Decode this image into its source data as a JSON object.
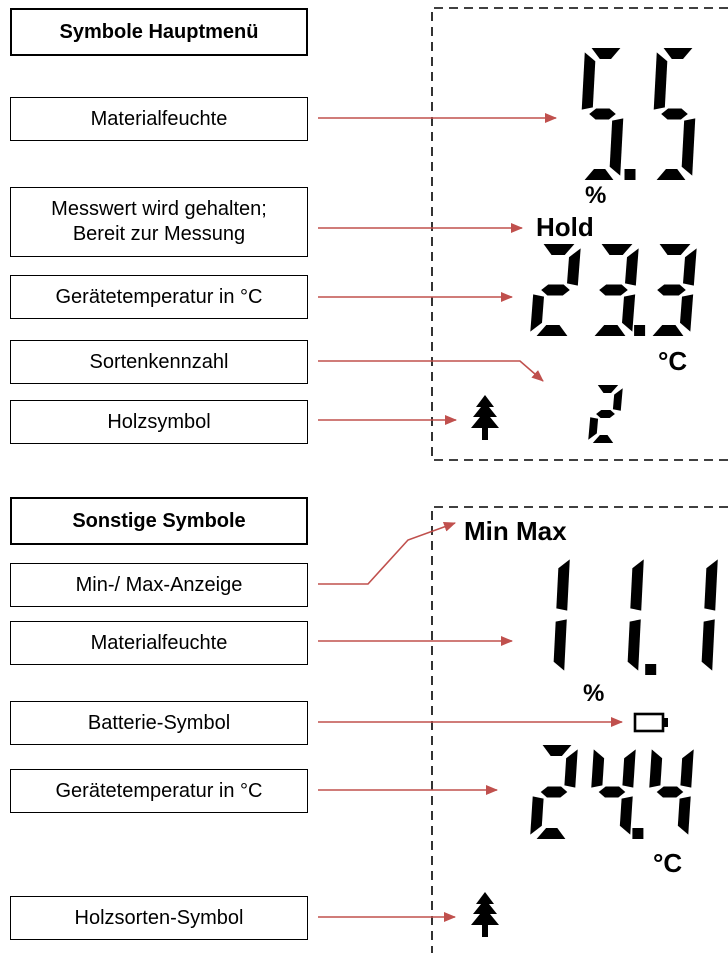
{
  "section1": {
    "title": "Symbole Hauptmenü",
    "items": [
      "Materialfeuchte",
      "Messwert wird gehalten;\nBereit zur Messung",
      "Gerätetemperatur in °C",
      "Sortenkennzahl",
      "Holzsymbol"
    ],
    "display": {
      "moisture": "5.5",
      "moisture_unit": "%",
      "hold": "Hold",
      "temperature": "23.3",
      "temp_unit": "°C",
      "species_code": "2"
    }
  },
  "section2": {
    "title": "Sonstige Symbole",
    "items": [
      "Min-/ Max-Anzeige",
      "Materialfeuchte",
      "Batterie-Symbol",
      "Gerätetemperatur in °C",
      "Holzsorten-Symbol"
    ],
    "display": {
      "minmax": "Min Max",
      "moisture": "11.1",
      "moisture_unit": "%",
      "temperature": "24.4",
      "temp_unit": "°C"
    }
  },
  "colors": {
    "arrow": "#c0504d",
    "border": "#000000"
  },
  "icons": [
    "tree-icon",
    "battery-icon"
  ]
}
